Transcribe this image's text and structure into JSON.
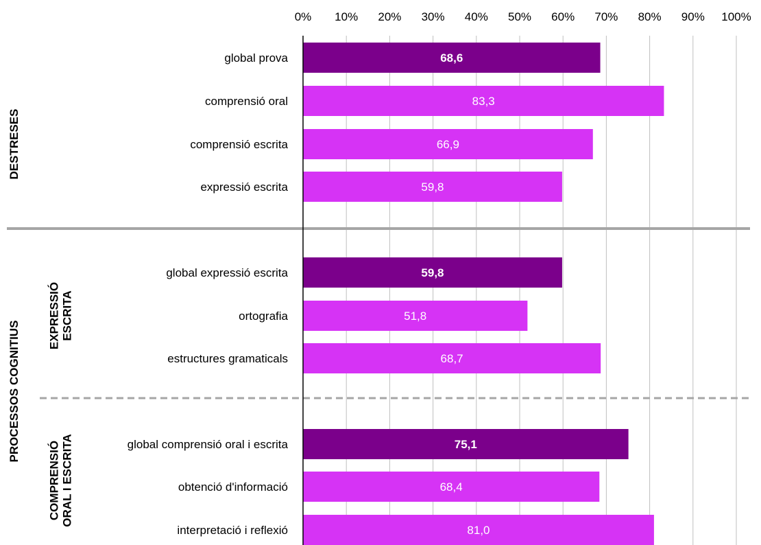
{
  "chart_data": {
    "type": "bar",
    "orientation": "horizontal",
    "xlim": [
      0,
      100
    ],
    "x_ticks": [
      "0%",
      "10%",
      "20%",
      "30%",
      "40%",
      "50%",
      "60%",
      "70%",
      "80%",
      "90%",
      "100%"
    ],
    "x_axis_position": "top",
    "grid": true,
    "legend": "none",
    "groups": [
      {
        "label": "DESTRESES"
      },
      {
        "label": "PROCESSOS COGNITIUS"
      },
      {
        "label": "EXPRESSIÓ ESCRITA",
        "lines": [
          "EXPRESSIÓ",
          "ESCRITA"
        ]
      },
      {
        "label": "COMPRENSIÓ ORAL I ESCRITA",
        "lines": [
          "COMPRENSIÓ",
          "ORAL I ESCRITA"
        ]
      }
    ],
    "categories": [
      "global prova",
      "comprensió oral",
      "comprensió escrita",
      "expressió escrita",
      "global expressió escrita",
      "ortografia",
      "estructures gramaticals",
      "global comprensió oral i escrita",
      "obtenció d'informació",
      "interpretació i reflexió"
    ],
    "values": [
      68.6,
      83.3,
      66.9,
      59.8,
      59.8,
      51.8,
      68.7,
      75.1,
      68.4,
      81.0
    ],
    "value_labels": [
      "68,6",
      "83,3",
      "66,9",
      "59,8",
      "59,8",
      "51,8",
      "68,7",
      "75,1",
      "68,4",
      "81,0"
    ],
    "highlight": [
      true,
      false,
      false,
      false,
      true,
      false,
      false,
      true,
      false,
      false
    ]
  },
  "colors": {
    "highlight_bar": "#7B008B",
    "bar": "#D633F5",
    "grid": "#BFBFBF",
    "separator_solid": "#A6A6A6",
    "separator_dashed": "#A6A6A6",
    "axis": "#000000",
    "label_text": "#000000",
    "value_text": "#FFFFFF"
  }
}
